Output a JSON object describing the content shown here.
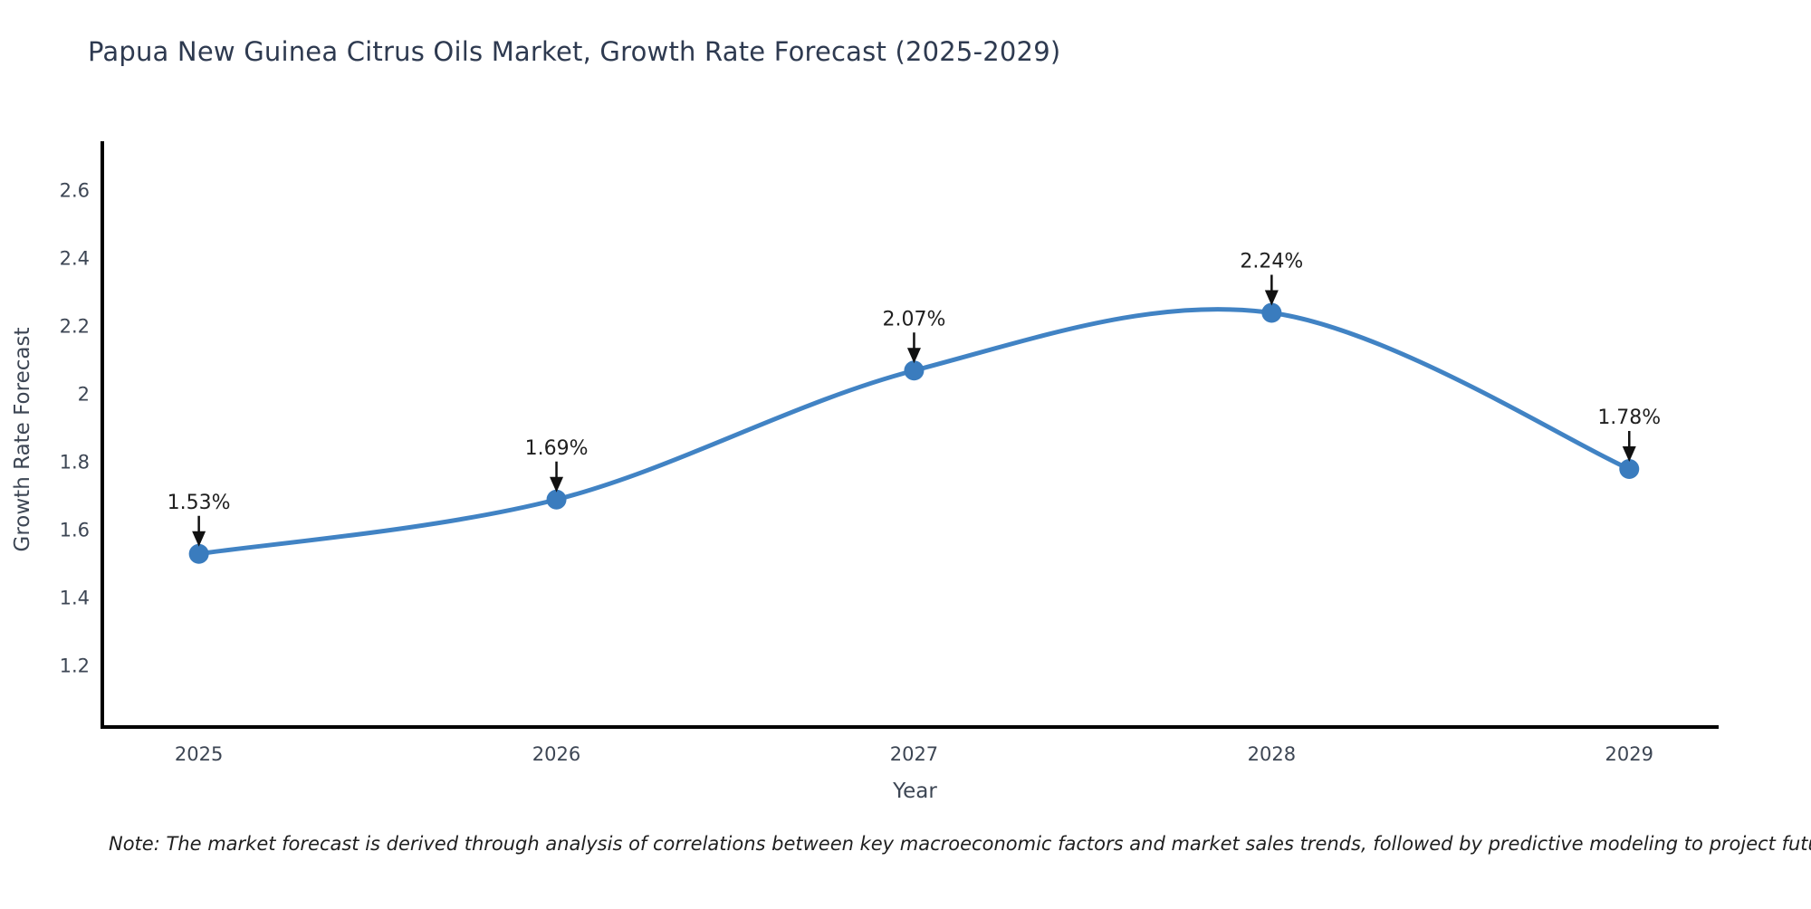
{
  "chart_data": {
    "type": "line",
    "title": "Papua New Guinea Citrus Oils Market, Growth Rate Forecast (2025-2029)",
    "xlabel": "Year",
    "ylabel": "Growth Rate Forecast",
    "x": [
      2025,
      2026,
      2027,
      2028,
      2029
    ],
    "series": [
      {
        "name": "Growth Rate Forecast",
        "values": [
          1.53,
          1.69,
          2.07,
          2.24,
          1.78
        ]
      }
    ],
    "point_labels": [
      "1.53%",
      "1.69%",
      "2.07%",
      "2.24%",
      "1.78%"
    ],
    "xtick_labels": [
      "2025",
      "2026",
      "2027",
      "2028",
      "2029"
    ],
    "ytick_values": [
      1.2,
      1.4,
      1.6,
      1.8,
      2.0,
      2.2,
      2.4,
      2.6
    ],
    "ytick_labels": [
      "1.2",
      "1.4",
      "1.6",
      "1.8",
      "2",
      "2.2",
      "2.4",
      "2.6"
    ],
    "xlim": [
      2024.73,
      2029.25
    ],
    "ylim": [
      1.02,
      2.74
    ],
    "grid": false,
    "legend_position": "none",
    "annotation_style": "value label with downward arrow to marker",
    "colors": {
      "line": "#4183c4",
      "marker": "#3a7cbe",
      "axis": "#000000",
      "tick_label": "#3d4654",
      "axis_label": "#3d4654",
      "title": "#2e3a50",
      "annotation_text": "#1f1f1f",
      "annotation_arrow": "#111111"
    }
  },
  "note": "Note: The market forecast is derived through analysis of correlations between key macroeconomic factors and market sales trends, followed by predictive modeling to project future sales."
}
